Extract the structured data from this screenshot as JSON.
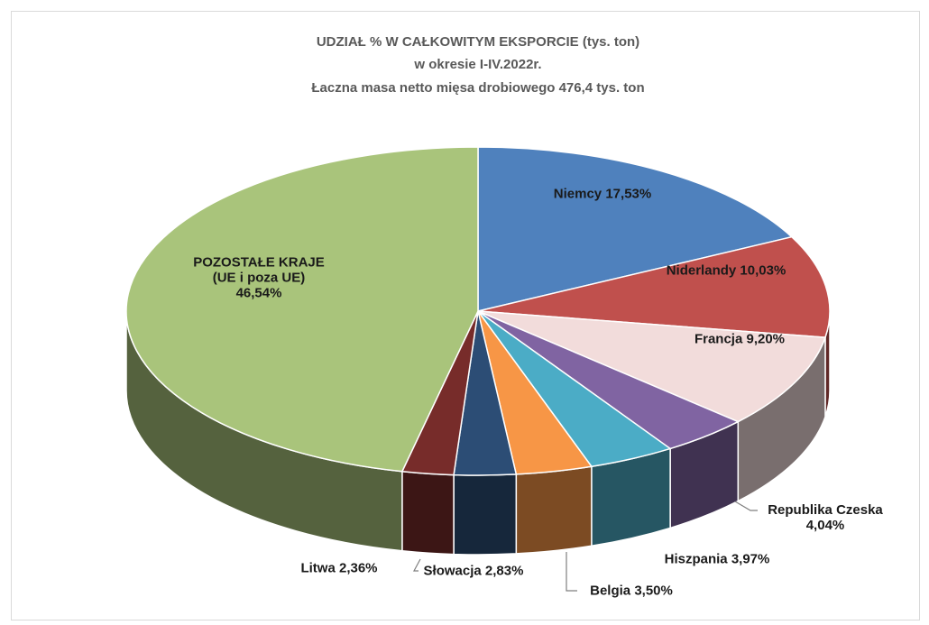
{
  "chart_data": {
    "type": "pie3d",
    "title": [
      "UDZIAŁ % W CAŁKOWITYM EKSPORCIE (tys. ton)",
      "w okresie I-IV.2022r.",
      "Łaczna masa netto mięsa drobiowego 476,4 tys. ton"
    ],
    "categories": [
      "Niemcy",
      "Niderlandy",
      "Francja",
      "Republika Czeska",
      "Hiszpania",
      "Belgia",
      "Słowacja",
      "Litwa",
      "POZOSTAŁE KRAJE (UE i poza UE)"
    ],
    "values": [
      17.53,
      10.03,
      9.2,
      4.04,
      3.97,
      3.5,
      2.83,
      2.36,
      46.54
    ],
    "value_labels": [
      "17,53%",
      "10,03%",
      "9,20%",
      "4,04%",
      "3,97%",
      "3,50%",
      "2,83%",
      "2,36%",
      "46,54%"
    ],
    "colors": [
      "#4f81bd",
      "#c0504d",
      "#f2dcdb",
      "#8064a2",
      "#4bacc6",
      "#f79646",
      "#2c4d75",
      "#772c2a",
      "#a9c47b"
    ]
  }
}
